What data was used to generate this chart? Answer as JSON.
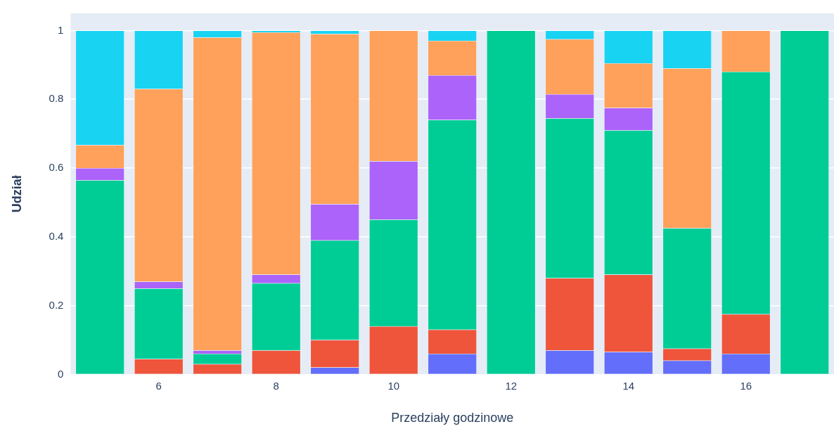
{
  "chart_data": {
    "type": "bar",
    "stacked": true,
    "xlabel": "Przedziały godzinowe",
    "ylabel": "Udział",
    "x": [
      5,
      6,
      7,
      8,
      9,
      10,
      11,
      12,
      13,
      14,
      15,
      16,
      17
    ],
    "xlim": [
      4.5,
      17.5
    ],
    "xticks": [
      6,
      8,
      10,
      12,
      14,
      16
    ],
    "ylim": [
      0,
      1.05
    ],
    "yticks": [
      0,
      0.2,
      0.4,
      0.6,
      0.8,
      1
    ],
    "grid": "y",
    "legend": false,
    "series": [
      {
        "color": "#636efa",
        "values": [
          0,
          0,
          0,
          0,
          0.02,
          0,
          0.06,
          0,
          0.07,
          0.065,
          0.04,
          0.06,
          0
        ]
      },
      {
        "color": "#ef553b",
        "values": [
          0,
          0.045,
          0.03,
          0.07,
          0.08,
          0.14,
          0.07,
          0,
          0.21,
          0.225,
          0.035,
          0.115,
          0
        ]
      },
      {
        "color": "#00cc96",
        "values": [
          0.565,
          0.205,
          0.03,
          0.195,
          0.29,
          0.31,
          0.61,
          1,
          0.465,
          0.42,
          0.35,
          0.705,
          1
        ]
      },
      {
        "color": "#ab63fa",
        "values": [
          0.035,
          0.02,
          0.01,
          0.025,
          0.105,
          0.17,
          0.13,
          0,
          0.07,
          0.065,
          0,
          0,
          0
        ]
      },
      {
        "color": "#ffa15a",
        "values": [
          0.067,
          0.56,
          0.91,
          0.705,
          0.495,
          0.38,
          0.1,
          0,
          0.16,
          0.13,
          0.465,
          0.12,
          0
        ]
      },
      {
        "color": "#19d3f3",
        "values": [
          0.333,
          0.17,
          0.02,
          0.005,
          0.01,
          0,
          0.03,
          0,
          0.025,
          0.095,
          0.11,
          0,
          0
        ]
      }
    ]
  }
}
